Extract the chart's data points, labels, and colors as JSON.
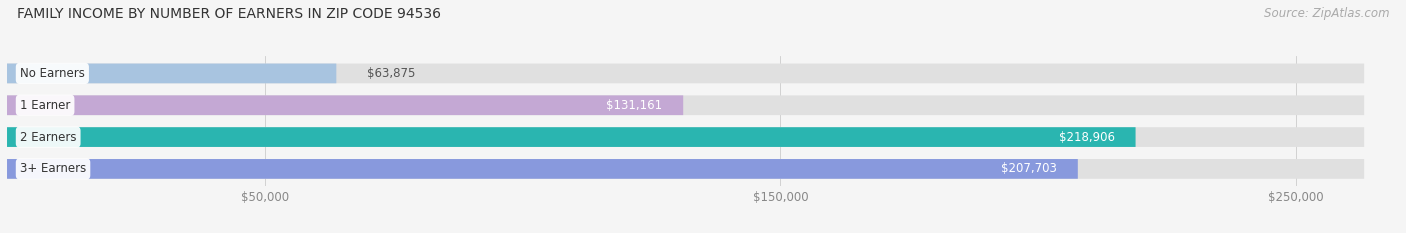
{
  "title": "FAMILY INCOME BY NUMBER OF EARNERS IN ZIP CODE 94536",
  "source": "Source: ZipAtlas.com",
  "categories": [
    "No Earners",
    "1 Earner",
    "2 Earners",
    "3+ Earners"
  ],
  "values": [
    63875,
    131161,
    218906,
    207703
  ],
  "bar_colors": [
    "#a8c4e0",
    "#c4a8d4",
    "#2ab5b0",
    "#8899dd"
  ],
  "label_colors": [
    "#555555",
    "#555555",
    "#ffffff",
    "#ffffff"
  ],
  "x_ticks": [
    50000,
    150000,
    250000
  ],
  "x_tick_labels": [
    "$50,000",
    "$150,000",
    "$250,000"
  ],
  "xlim": [
    0,
    270000
  ],
  "value_labels": [
    "$63,875",
    "$131,161",
    "$218,906",
    "$207,703"
  ],
  "bg_color": "#f5f5f5",
  "bar_bg_color": "#e0e0e0",
  "title_fontsize": 10,
  "source_fontsize": 8.5,
  "bar_height": 0.62
}
